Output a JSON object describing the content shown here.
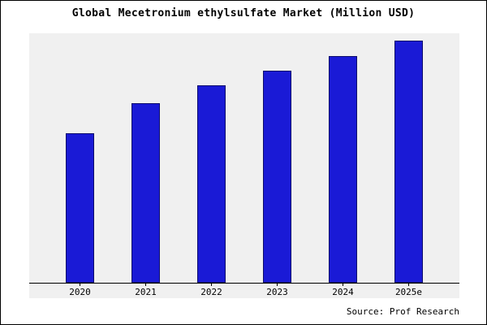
{
  "page": {
    "title": "Global Mecetronium ethylsulfate Market (Million USD)",
    "source": "Source: Prof Research"
  },
  "chart_data": {
    "type": "bar",
    "title": "Global Mecetronium ethylsulfate Market (Million USD)",
    "categories": [
      "2020",
      "2021",
      "2022",
      "2023",
      "2024",
      "2025e"
    ],
    "values": [
      60,
      72,
      79,
      85,
      91,
      97
    ],
    "xlabel": "",
    "ylabel": "",
    "ylim": [
      0,
      100
    ],
    "grid": false,
    "legend": "none",
    "bar_color": "#1a1ad6",
    "bar_edge_color": "#0d0d6b",
    "plot_background": "#f0f0f0"
  }
}
